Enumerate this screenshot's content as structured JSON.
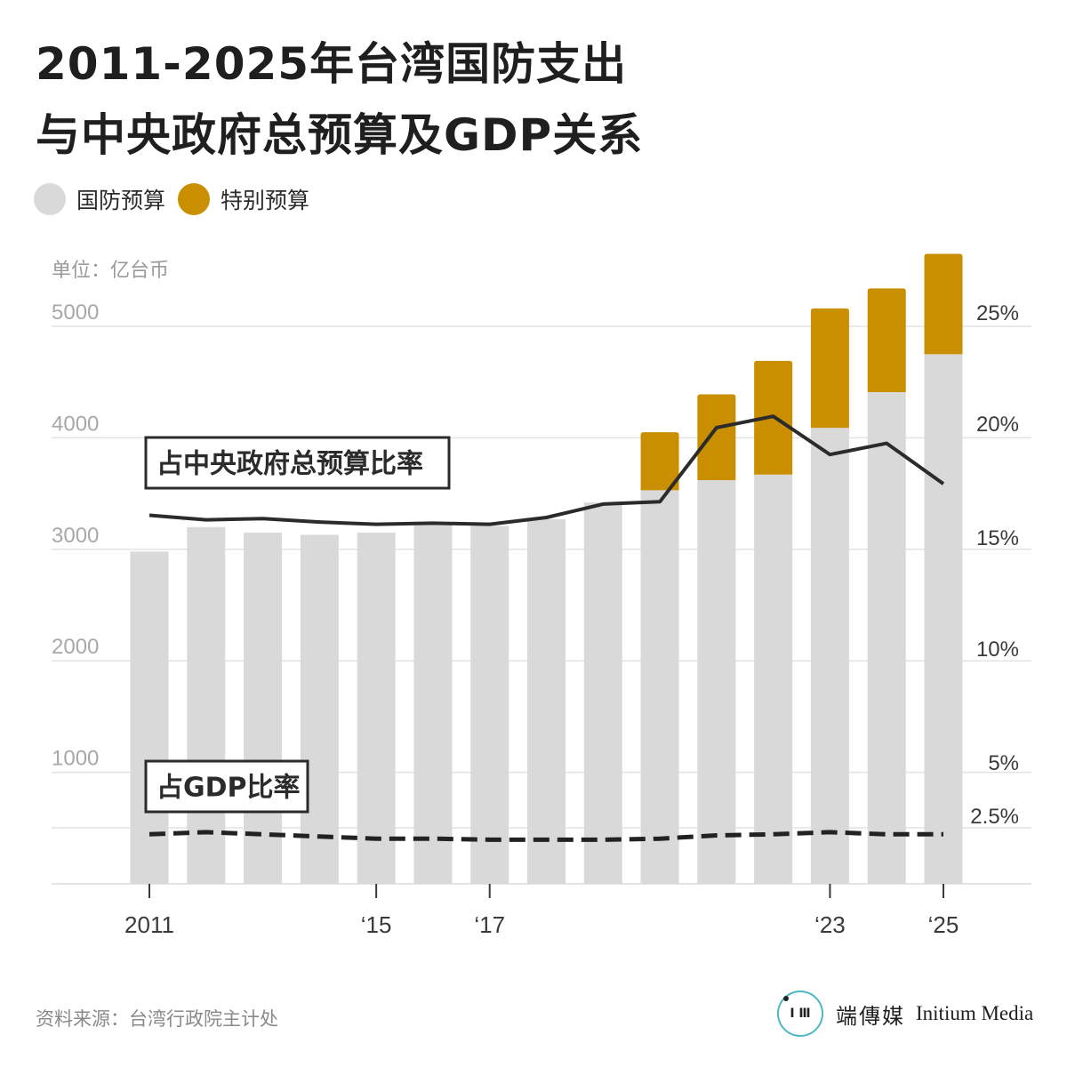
{
  "title_line1": "2011-2025年台湾国防支出",
  "title_line2": "与中央政府总预算及GDP关系",
  "legend": [
    {
      "label": "国防预算",
      "color": "#d9d9d9"
    },
    {
      "label": "特别预算",
      "color": "#c98f00"
    }
  ],
  "unit": "单位：亿台币",
  "source": "资料来源：台湾行政院主计处",
  "brand": {
    "cn": "端傳媒",
    "en": "Initium Media",
    "logo_text": "I Ⅲ"
  },
  "chart_data": {
    "type": "bar",
    "stacked": true,
    "years": [
      2011,
      2012,
      2013,
      2014,
      2015,
      2016,
      2017,
      2018,
      2019,
      2020,
      2021,
      2022,
      2023,
      2024,
      2025
    ],
    "x_tick_labels": [
      "2011",
      "",
      "",
      "",
      "‘15",
      "",
      "‘17",
      "",
      "",
      "",
      "",
      "",
      "‘23",
      "",
      "‘25"
    ],
    "y_ticks": [
      "5000",
      "4000",
      "3000",
      "2000",
      "1000"
    ],
    "ylim": [
      0,
      5000
    ],
    "y2_ticks": [
      "25%",
      "20%",
      "15%",
      "10%",
      "5%",
      "2.5%"
    ],
    "grid": true,
    "series": [
      {
        "name": "国防预算",
        "color": "#d9d9d9",
        "values": [
          2980,
          3200,
          3150,
          3130,
          3150,
          3230,
          3210,
          3270,
          3420,
          3530,
          3620,
          3670,
          4090,
          4410,
          4750
        ]
      },
      {
        "name": "特别预算",
        "color": "#c98f00",
        "values": [
          0,
          0,
          0,
          0,
          0,
          0,
          0,
          0,
          0,
          520,
          770,
          1020,
          1070,
          930,
          900
        ]
      }
    ],
    "lines": [
      {
        "name": "占中央政府总预算比率",
        "style": "solid",
        "color": "#2b2b2b",
        "values": [
          16.6,
          16.4,
          16.45,
          16.3,
          16.2,
          16.25,
          16.2,
          16.5,
          17.1,
          17.2,
          20.5,
          21.0,
          19.3,
          19.8,
          18.0
        ]
      },
      {
        "name": "占GDP比率",
        "style": "dashed",
        "color": "#222222",
        "values": [
          2.2,
          2.3,
          2.2,
          2.1,
          2.0,
          2.0,
          1.95,
          1.95,
          1.95,
          2.0,
          2.15,
          2.2,
          2.3,
          2.2,
          2.2
        ]
      }
    ]
  }
}
